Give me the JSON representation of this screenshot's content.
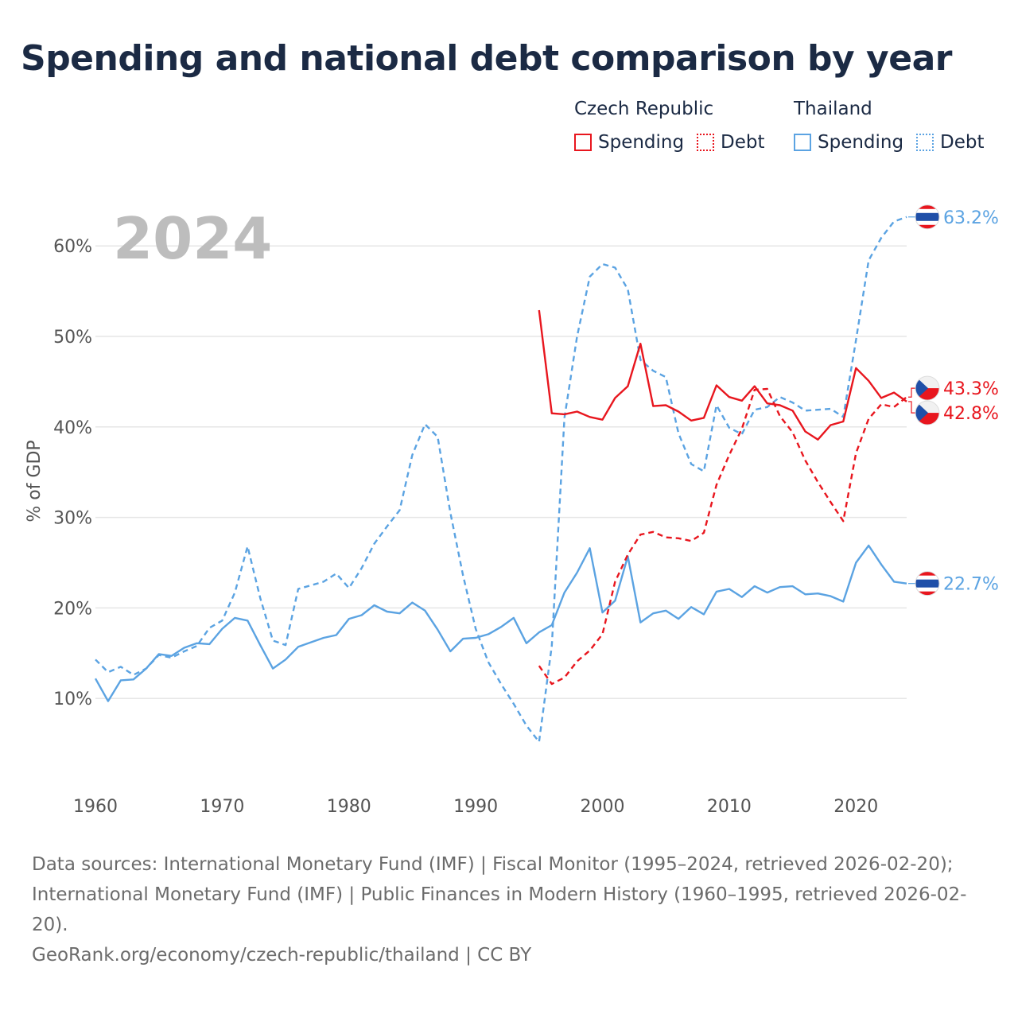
{
  "title": "Spending and national debt comparison by year",
  "legend": {
    "groups": [
      {
        "country": "Czech Republic",
        "color": "#e8161e",
        "items": [
          "Spending",
          "Debt"
        ]
      },
      {
        "country": "Thailand",
        "color": "#5ba3e2",
        "items": [
          "Spending",
          "Debt"
        ]
      }
    ]
  },
  "footer": {
    "sources": "Data sources: International Monetary Fund (IMF) | Fiscal Monitor (1995–2024, retrieved 2026-02-20); International Monetary Fund (IMF) | Public Finances in Modern History (1960–1995, retrieved 2026-02-20).",
    "credit": "GeoRank.org/economy/czech-republic/thailand | CC BY"
  },
  "chart_data": {
    "type": "line",
    "year_label": "2024",
    "ylabel": "% of GDP",
    "xlim": [
      1960,
      2024
    ],
    "ylim": [
      0,
      65
    ],
    "xticks": [
      1960,
      1970,
      1980,
      1990,
      2000,
      2010,
      2020
    ],
    "yticks": [
      10,
      20,
      30,
      40,
      50,
      60
    ],
    "ytick_labels": [
      "10%",
      "20%",
      "30%",
      "40%",
      "50%",
      "60%"
    ],
    "series": [
      {
        "name": "Thailand Debt",
        "country": "Thailand",
        "kind": "Debt",
        "color": "#5ba3e2",
        "dashed": true,
        "start": 1960,
        "values": [
          14.3,
          12.9,
          13.5,
          12.6,
          13.3,
          14.8,
          14.5,
          15.2,
          15.8,
          17.8,
          18.6,
          21.7,
          26.8,
          21.1,
          16.4,
          15.9,
          22.1,
          22.5,
          22.9,
          23.8,
          22.2,
          24.4,
          27.1,
          29.0,
          30.8,
          36.9,
          40.3,
          38.9,
          30.5,
          23.6,
          17.7,
          14.0,
          11.6,
          9.4,
          7.0,
          5.2,
          15.8,
          41.0,
          50.0,
          56.6,
          58.0,
          57.6,
          55.2,
          47.4,
          46.2,
          45.5,
          39.3,
          35.9,
          35.1,
          42.4,
          39.9,
          39.2,
          41.9,
          42.2,
          43.3,
          42.7,
          41.8,
          41.9,
          42.0,
          41.1,
          49.6,
          58.4,
          60.9,
          62.7,
          63.2
        ]
      },
      {
        "name": "Thailand Spending",
        "country": "Thailand",
        "kind": "Spending",
        "color": "#5ba3e2",
        "dashed": false,
        "start": 1960,
        "values": [
          12.2,
          9.7,
          12.0,
          12.1,
          13.3,
          14.9,
          14.7,
          15.6,
          16.1,
          16.0,
          17.7,
          18.9,
          18.6,
          15.9,
          13.3,
          14.3,
          15.7,
          16.2,
          16.7,
          17.0,
          18.8,
          19.2,
          20.3,
          19.6,
          19.4,
          20.6,
          19.7,
          17.6,
          15.2,
          16.6,
          16.7,
          17.1,
          17.9,
          18.9,
          16.1,
          17.3,
          18.1,
          21.7,
          23.9,
          26.6,
          19.5,
          20.8,
          25.7,
          18.4,
          19.4,
          19.7,
          18.8,
          20.1,
          19.3,
          21.8,
          22.1,
          21.2,
          22.4,
          21.7,
          22.3,
          22.4,
          21.5,
          21.6,
          21.3,
          20.7,
          25.0,
          26.9,
          24.8,
          22.9,
          22.7
        ]
      },
      {
        "name": "Czech Republic Spending",
        "country": "Czech Republic",
        "kind": "Spending",
        "color": "#e8161e",
        "dashed": false,
        "start": 1995,
        "values": [
          52.9,
          41.5,
          41.4,
          41.7,
          41.1,
          40.8,
          43.2,
          44.5,
          49.2,
          42.3,
          42.4,
          41.7,
          40.7,
          41.0,
          44.6,
          43.3,
          42.9,
          44.5,
          42.6,
          42.4,
          41.8,
          39.5,
          38.6,
          40.2,
          40.6,
          46.5,
          45.1,
          43.2,
          43.8,
          42.8
        ]
      },
      {
        "name": "Czech Republic Debt",
        "country": "Czech Republic",
        "kind": "Debt",
        "color": "#e8161e",
        "dashed": true,
        "start": 1995,
        "values": [
          13.6,
          11.6,
          12.3,
          14.1,
          15.3,
          17.1,
          22.9,
          25.9,
          28.1,
          28.4,
          27.8,
          27.7,
          27.4,
          28.3,
          33.6,
          36.9,
          39.8,
          44.1,
          44.2,
          41.2,
          39.4,
          36.3,
          33.9,
          31.7,
          29.6,
          37.1,
          40.9,
          42.5,
          42.2,
          43.3
        ]
      }
    ],
    "end_labels": [
      {
        "series": "Thailand Debt",
        "text": "63.2%"
      },
      {
        "series": "Thailand Spending",
        "text": "22.7%"
      },
      {
        "series": "Czech Republic Debt",
        "text": "43.3%"
      },
      {
        "series": "Czech Republic Spending",
        "text": "42.8%"
      }
    ]
  }
}
